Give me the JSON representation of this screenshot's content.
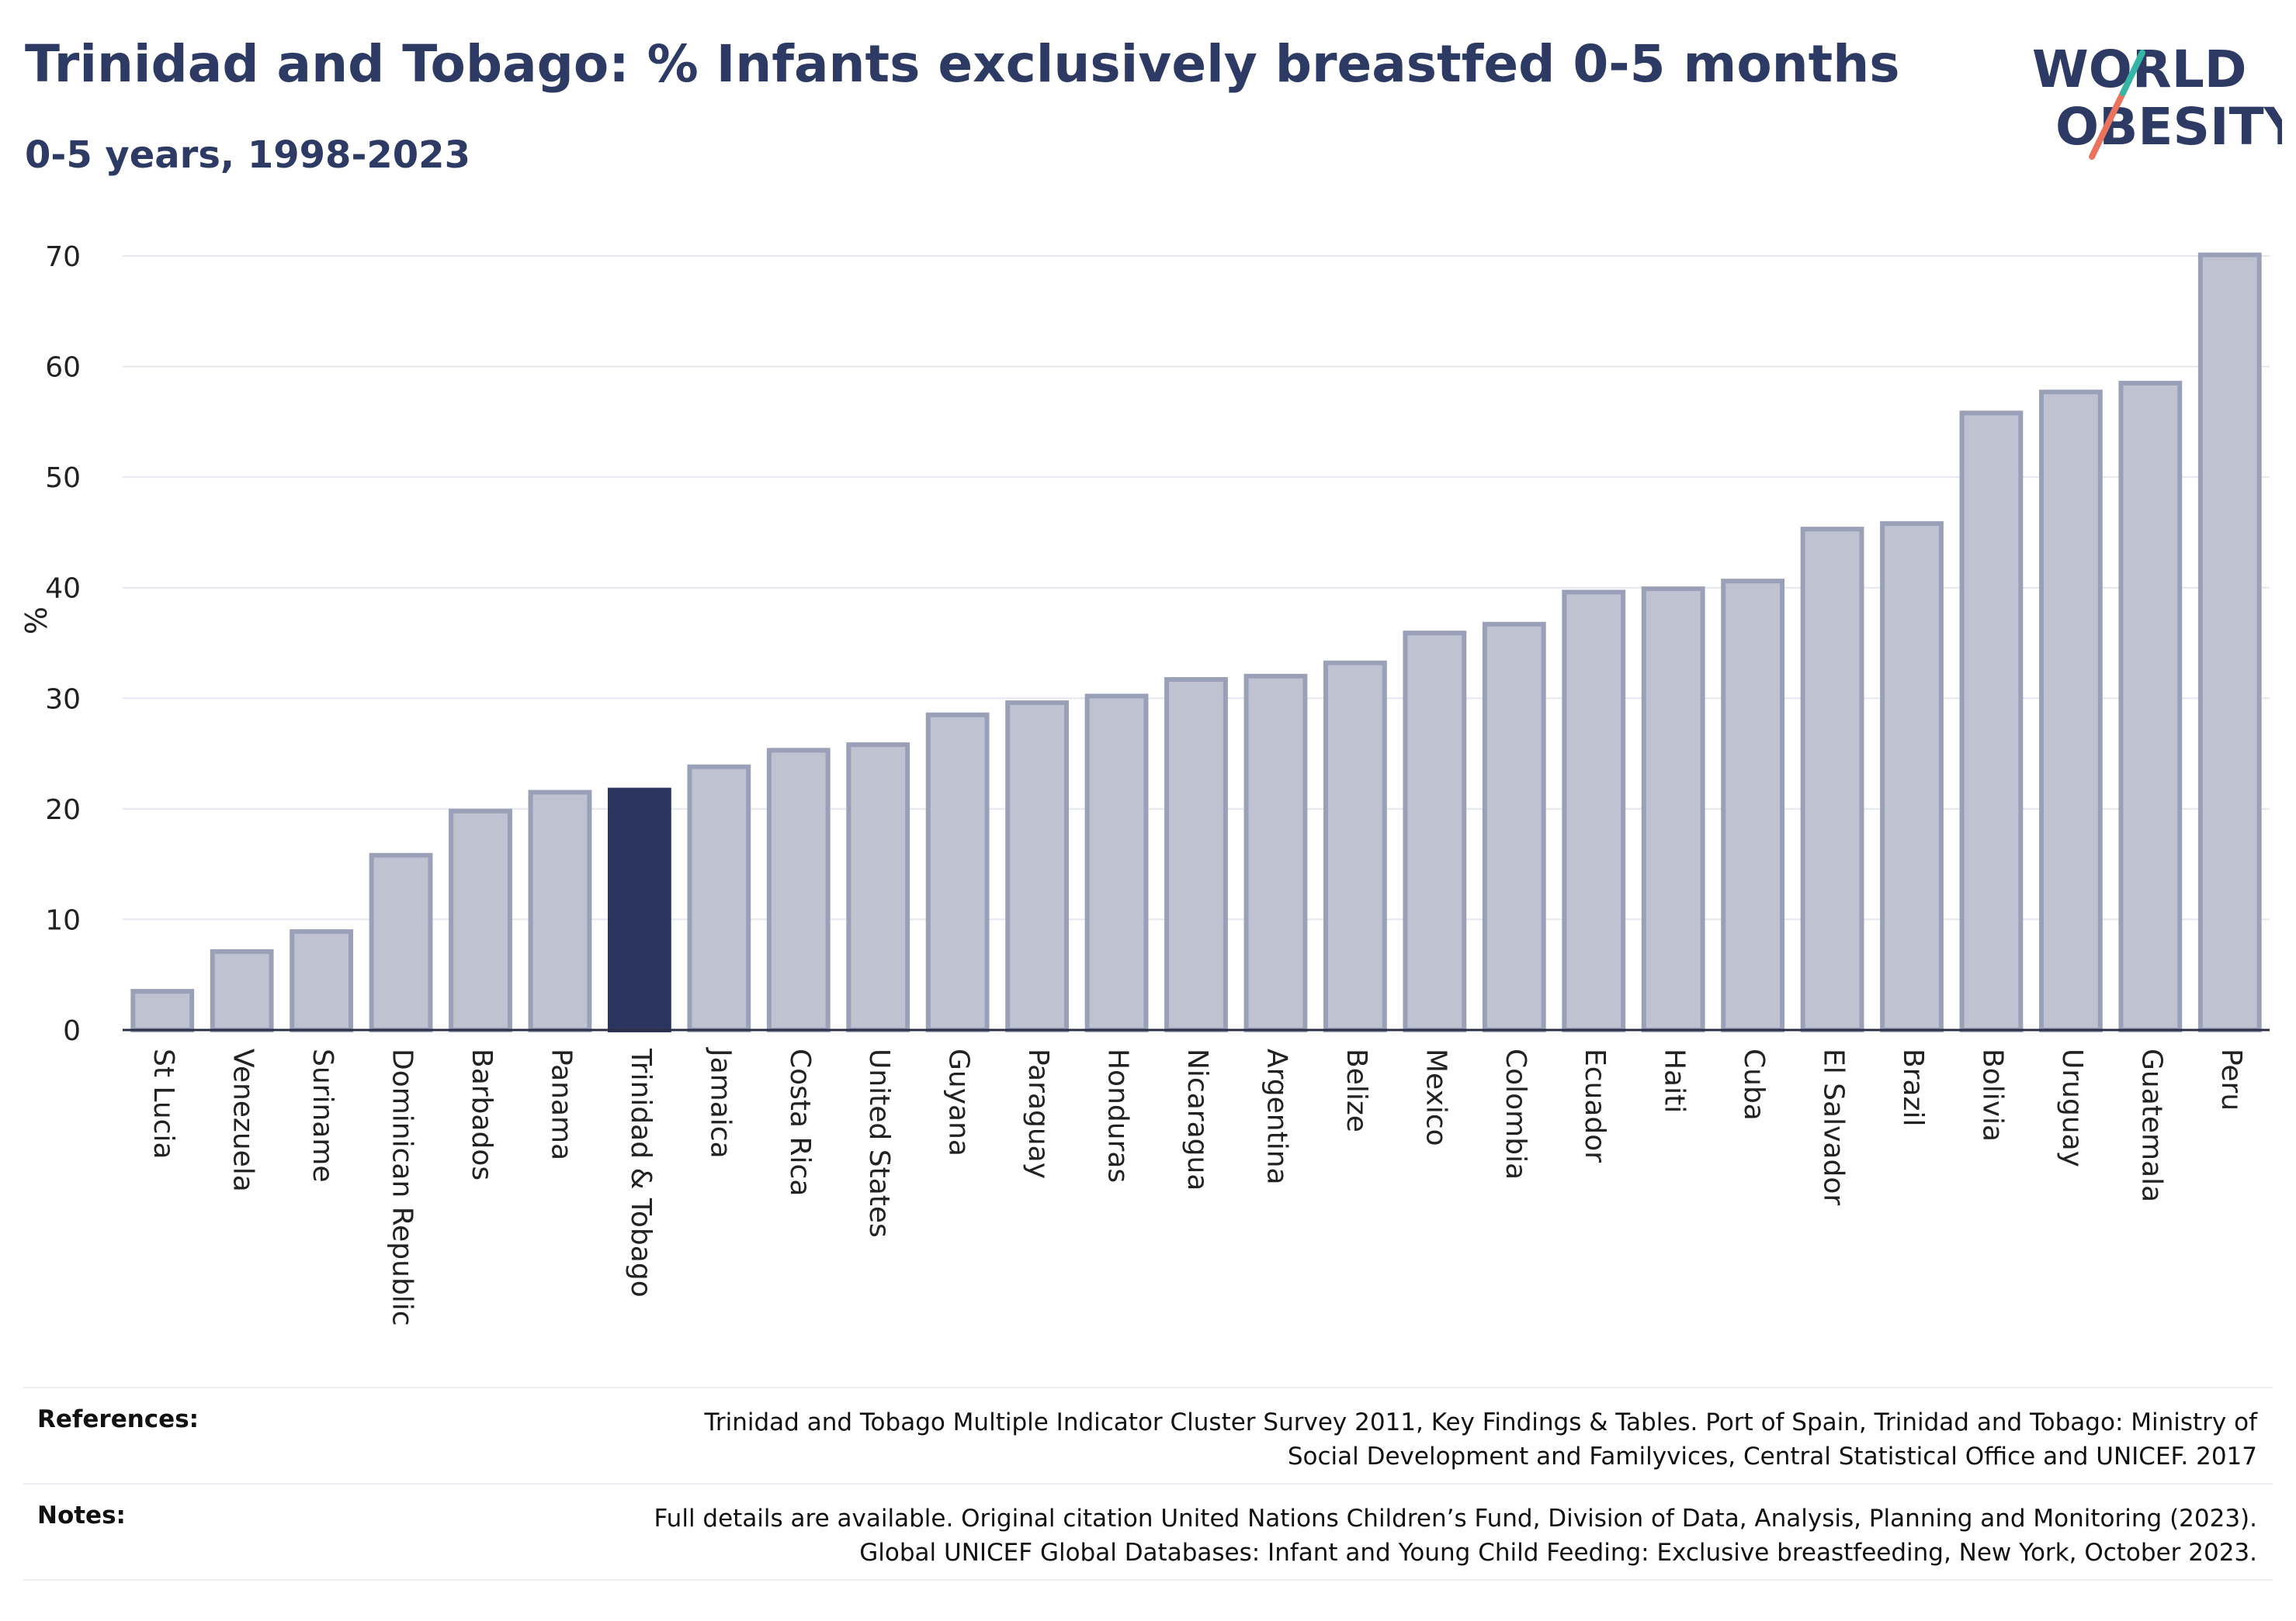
{
  "header": {
    "title": "Trinidad and Tobago: % Infants exclusively breastfed 0-5 months",
    "subtitle": "0-5 years, 1998-2023"
  },
  "logo": {
    "line1": "WORLD",
    "line2": "OBESITY"
  },
  "colors": {
    "highlight": "#2b3560",
    "bar_fill": "#bfc2d1",
    "bar_stroke": "#9aa0b8",
    "grid": "#e6e6ee",
    "axis": "#2b2f45",
    "logo_text": "#2d3a63",
    "logo_slash_red": "#e9735d",
    "logo_slash_teal": "#36b5a6"
  },
  "chart_data": {
    "type": "bar",
    "title": "Trinidad and Tobago: % Infants exclusively breastfed 0-5 months",
    "subtitle": "0-5 years, 1998-2023",
    "xlabel": "",
    "ylabel": "%",
    "ylim": [
      0,
      70
    ],
    "yticks": [
      0,
      10,
      20,
      30,
      40,
      50,
      60,
      70
    ],
    "grid": true,
    "highlight": "Trinidad & Tobago",
    "categories": [
      "St Lucia",
      "Venezuela",
      "Suriname",
      "Dominican Republic",
      "Barbados",
      "Panama",
      "Trinidad & Tobago",
      "Jamaica",
      "Costa Rica",
      "United States",
      "Guyana",
      "Paraguay",
      "Honduras",
      "Nicaragua",
      "Argentina",
      "Belize",
      "Mexico",
      "Colombia",
      "Ecuador",
      "Haiti",
      "Cuba",
      "El Salvador",
      "Brazil",
      "Bolivia",
      "Uruguay",
      "Guatemala",
      "Peru"
    ],
    "values": [
      3.5,
      7.1,
      8.9,
      15.8,
      19.8,
      21.5,
      21.7,
      23.8,
      25.3,
      25.8,
      28.5,
      29.6,
      30.2,
      31.7,
      32.0,
      33.2,
      35.9,
      36.7,
      39.6,
      39.9,
      40.6,
      45.3,
      45.8,
      55.8,
      57.7,
      58.5,
      70.1
    ]
  },
  "footer": {
    "references_label": "References:",
    "references_text": "Trinidad and Tobago Multiple Indicator Cluster Survey 2011, Key Findings & Tables. Port of Spain, Trinidad and Tobago: Ministry of Social Development and Familyvices, Central Statistical Office and UNICEF. 2017",
    "notes_label": "Notes:",
    "notes_text": "Full details are available. Original citation United Nations Children’s Fund, Division of Data, Analysis, Planning and Monitoring (2023). Global UNICEF Global Databases: Infant and Young Child Feeding: Exclusive breastfeeding, New York, October 2023."
  }
}
